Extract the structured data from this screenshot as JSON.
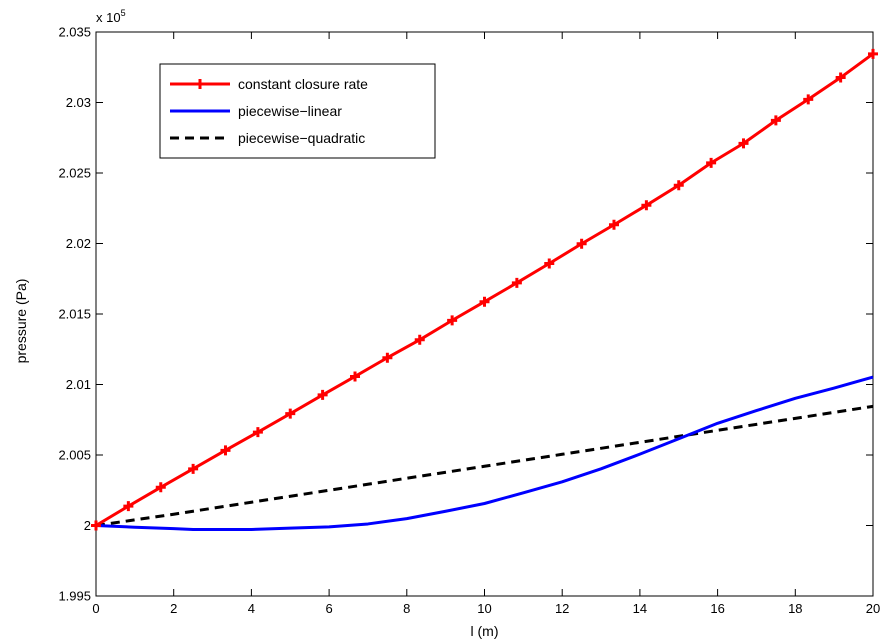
{
  "chart_data": {
    "type": "line",
    "xlabel": "l (m)",
    "ylabel": "pressure (Pa)",
    "y_multiplier": "x 10",
    "y_exponent": "5",
    "xlim": [
      0,
      20
    ],
    "ylim": [
      1.995,
      2.035
    ],
    "x_ticks": [
      "0",
      "2",
      "4",
      "6",
      "8",
      "10",
      "12",
      "14",
      "16",
      "18",
      "20"
    ],
    "y_ticks": [
      "1.995",
      "2",
      "2.005",
      "2.01",
      "2.015",
      "2.02",
      "2.025",
      "2.03",
      "2.035"
    ],
    "grid": false,
    "legend_placement": "top-left",
    "series": [
      {
        "name": "constant closure rate",
        "color": "#ff0000",
        "style": "solid-plus-markers",
        "x": [
          0,
          0.833,
          1.667,
          2.5,
          3.333,
          4.167,
          5,
          5.833,
          6.667,
          7.5,
          8.333,
          9.167,
          10,
          10.833,
          11.667,
          12.5,
          13.333,
          14.167,
          15,
          15.833,
          16.667,
          17.5,
          18.333,
          19.167,
          20
        ],
        "y": [
          2.0,
          2.00137,
          2.00271,
          2.00402,
          2.00533,
          2.00662,
          2.00793,
          2.00926,
          2.01057,
          2.0119,
          2.01317,
          2.01455,
          2.01587,
          2.01721,
          2.01858,
          2.01998,
          2.02133,
          2.02271,
          2.02413,
          2.02572,
          2.0271,
          2.02873,
          2.03022,
          2.03177,
          2.03345
        ]
      },
      {
        "name": "piecewise−linear",
        "color": "#0000ff",
        "style": "solid",
        "x": [
          0,
          1,
          2,
          2.5,
          3,
          4,
          5,
          6,
          7,
          8,
          9,
          10,
          11,
          12,
          13,
          14,
          15,
          16,
          17,
          18,
          19,
          20
        ],
        "y": [
          2.0,
          1.99988,
          1.99978,
          1.99972,
          1.99972,
          1.99972,
          1.99981,
          1.9999,
          2.00011,
          2.00049,
          2.00101,
          2.00156,
          2.00232,
          2.0031,
          2.00402,
          2.00506,
          2.00615,
          2.00725,
          2.00815,
          2.00902,
          2.00975,
          2.01053
        ]
      },
      {
        "name": "piecewise−quadratic",
        "color": "#000000",
        "style": "dashed",
        "x": [
          0,
          2,
          4,
          6,
          8,
          10,
          12,
          14,
          16,
          18,
          20
        ],
        "y": [
          2.0,
          2.0008,
          2.00165,
          2.0025,
          2.00335,
          2.0042,
          2.00505,
          2.0059,
          2.00675,
          2.0076,
          2.00845
        ]
      }
    ]
  }
}
